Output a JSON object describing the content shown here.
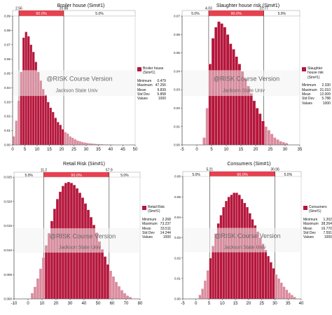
{
  "colors": {
    "bar_fill": "#b5163b",
    "bar_stroke": "#ffffff",
    "band_fill": "#e8404f",
    "tail_hatch": "#b5163b",
    "watermark_band": "#f2f2f2",
    "watermark_text": "#666666",
    "axis": "#333333"
  },
  "watermark": {
    "line1": "@RISK Course Version",
    "line2": "Jackson State Univ"
  },
  "chart_data": [
    {
      "type": "bar",
      "title": "Broiler house (Sim#1)",
      "percentile_band": {
        "lower": "2.56",
        "upper": "20.86",
        "left_pct": "",
        "middle_pct": "90.0%",
        "right_pct": "5.0%"
      },
      "band_values": [
        2.56,
        20.86
      ],
      "xlim": [
        0,
        50
      ],
      "ylim": [
        0,
        0.09
      ],
      "x_ticks": [
        "0",
        "5",
        "10",
        "15",
        "20",
        "25",
        "30",
        "35",
        "40",
        "45",
        "50"
      ],
      "y_ticks": [
        "0.00",
        "0.01",
        "0.02",
        "0.03",
        "0.04",
        "0.05",
        "0.06",
        "0.07",
        "0.08",
        "0.09"
      ],
      "bin_width": 1,
      "x": [
        0.5,
        1.5,
        2.5,
        3.5,
        4.5,
        5.5,
        6.5,
        7.5,
        8.5,
        9.5,
        10.5,
        11.5,
        12.5,
        13.5,
        14.5,
        15.5,
        16.5,
        17.5,
        18.5,
        19.5,
        20.5,
        21.5,
        22.5,
        23.5,
        24.5,
        25.5,
        26.5,
        27.5,
        28.5,
        29.5,
        30.5,
        31.5,
        32.5,
        33.5,
        34.5,
        35.5,
        36.5,
        37.5,
        38.5,
        39.5,
        40.5,
        41.5,
        42.5,
        43.5,
        44.5,
        45.5,
        46.5,
        47.5
      ],
      "values": [
        0.006,
        0.017,
        0.031,
        0.051,
        0.075,
        0.079,
        0.076,
        0.07,
        0.065,
        0.058,
        0.051,
        0.045,
        0.039,
        0.035,
        0.03,
        0.026,
        0.023,
        0.019,
        0.016,
        0.014,
        0.011,
        0.009,
        0.008,
        0.006,
        0.005,
        0.004,
        0.003,
        0.0025,
        0.002,
        0.0017,
        0.0014,
        0.0012,
        0.001,
        0.0008,
        0.0007,
        0.0006,
        0.0005,
        0.0004,
        0.0004,
        0.0003,
        0.0003,
        0.0002,
        0.0002,
        0.0002,
        0.0001,
        0.0001,
        0.0001,
        0.0001
      ],
      "legend": {
        "name": "Broiler house (Sim#1)",
        "stats": [
          {
            "label": "Minimum",
            "value": "0.479"
          },
          {
            "label": "Maximum",
            "value": "47.256"
          },
          {
            "label": "Mean",
            "value": "9.839"
          },
          {
            "label": "Std Dev",
            "value": "5.858"
          },
          {
            "label": "Values",
            "value": "1000"
          }
        ]
      }
    },
    {
      "type": "bar",
      "title": "Slaughter house risk (Sim#1)",
      "percentile_band": {
        "lower": "4.03",
        "upper": "22.77",
        "left_pct": "5.0%",
        "middle_pct": "90.0%",
        "right_pct": "5.0%"
      },
      "band_values": [
        4.03,
        22.77
      ],
      "xlim": [
        -5,
        35
      ],
      "ylim": [
        0,
        0.07
      ],
      "x_ticks": [
        "-5",
        "0",
        "5",
        "10",
        "15",
        "20",
        "25",
        "30",
        "35"
      ],
      "y_ticks": [
        "0.00",
        "0.01",
        "0.02",
        "0.03",
        "0.04",
        "0.05",
        "0.06",
        "0.07"
      ],
      "bin_width": 1,
      "x": [
        2.5,
        3.5,
        4.5,
        5.5,
        6.5,
        7.5,
        8.5,
        9.5,
        10.5,
        11.5,
        12.5,
        13.5,
        14.5,
        15.5,
        16.5,
        17.5,
        18.5,
        19.5,
        20.5,
        21.5,
        22.5,
        23.5,
        24.5,
        25.5,
        26.5,
        27.5,
        28.5,
        29.5,
        30.5
      ],
      "values": [
        0.004,
        0.02,
        0.044,
        0.058,
        0.064,
        0.067,
        0.066,
        0.064,
        0.06,
        0.055,
        0.052,
        0.048,
        0.044,
        0.04,
        0.036,
        0.032,
        0.028,
        0.024,
        0.02,
        0.017,
        0.013,
        0.01,
        0.008,
        0.006,
        0.004,
        0.003,
        0.002,
        0.0015,
        0.001
      ],
      "legend": {
        "name": "Slaughter house risk (Sim#1)",
        "stats": [
          {
            "label": "Minimum",
            "value": "2.330"
          },
          {
            "label": "Maximum",
            "value": "31.010"
          },
          {
            "label": "Mean",
            "value": "12.009"
          },
          {
            "label": "Std Dev",
            "value": "5.788"
          },
          {
            "label": "Values",
            "value": "1000"
          }
        ]
      }
    },
    {
      "type": "bar",
      "title": "Retail Risk (Sim#1)",
      "percentile_band": {
        "lower": "11.2",
        "upper": "57.9",
        "left_pct": "5.0%",
        "middle_pct": "90.0%",
        "right_pct": "5.0%"
      },
      "band_values": [
        11.2,
        57.9
      ],
      "xlim": [
        -10,
        80
      ],
      "ylim": [
        0,
        0.025
      ],
      "x_ticks": [
        "-10",
        "0",
        "10",
        "20",
        "30",
        "40",
        "50",
        "60",
        "70",
        "80"
      ],
      "y_ticks": [
        "0.000",
        "0.005",
        "0.010",
        "0.015",
        "0.020",
        "0.025"
      ],
      "bin_width": 2,
      "x": [
        3,
        5,
        7,
        9,
        11,
        13,
        15,
        17,
        19,
        21,
        23,
        25,
        27,
        29,
        31,
        33,
        35,
        37,
        39,
        41,
        43,
        45,
        47,
        49,
        51,
        53,
        55,
        57,
        59,
        61,
        63,
        65,
        67,
        69,
        71,
        73
      ],
      "values": [
        0.0012,
        0.0025,
        0.0042,
        0.0062,
        0.0085,
        0.011,
        0.0135,
        0.016,
        0.0185,
        0.0205,
        0.022,
        0.0232,
        0.0238,
        0.024,
        0.0238,
        0.0234,
        0.0227,
        0.0218,
        0.0208,
        0.0196,
        0.0183,
        0.0168,
        0.0152,
        0.0136,
        0.0118,
        0.0102,
        0.0087,
        0.0071,
        0.0058,
        0.0046,
        0.0035,
        0.0026,
        0.0018,
        0.0012,
        0.0007,
        0.0004
      ],
      "legend": {
        "name": "Retail Risk (Sim#1)",
        "stats": [
          {
            "label": "Minimum",
            "value": "2.268"
          },
          {
            "label": "Maximum",
            "value": "73.237"
          },
          {
            "label": "Mean",
            "value": "33.511"
          },
          {
            "label": "Std Dev",
            "value": "14.244"
          },
          {
            "label": "Values",
            "value": "1000"
          }
        ]
      }
    },
    {
      "type": "bar",
      "title": "Consumers (Sim#1)",
      "percentile_band": {
        "lower": "5.21",
        "upper": "30.06",
        "left_pct": "5.0%",
        "middle_pct": "90.0%",
        "right_pct": "5.0%"
      },
      "band_values": [
        5.21,
        30.06
      ],
      "xlim": [
        -5,
        40
      ],
      "ylim": [
        0,
        0.06
      ],
      "x_ticks": [
        "-5",
        "0",
        "5",
        "10",
        "15",
        "20",
        "25",
        "30",
        "35",
        "40"
      ],
      "y_ticks": [
        "0.00",
        "0.01",
        "0.02",
        "0.03",
        "0.04",
        "0.05",
        "0.06"
      ],
      "bin_width": 1,
      "x": [
        1.5,
        2.5,
        3.5,
        4.5,
        5.5,
        6.5,
        7.5,
        8.5,
        9.5,
        10.5,
        11.5,
        12.5,
        13.5,
        14.5,
        15.5,
        16.5,
        17.5,
        18.5,
        19.5,
        20.5,
        21.5,
        22.5,
        23.5,
        24.5,
        25.5,
        26.5,
        27.5,
        28.5,
        29.5,
        30.5,
        31.5,
        32.5,
        33.5,
        34.5,
        35.5,
        36.5,
        37.5
      ],
      "values": [
        0.002,
        0.005,
        0.009,
        0.014,
        0.02,
        0.026,
        0.032,
        0.037,
        0.041,
        0.045,
        0.048,
        0.05,
        0.051,
        0.052,
        0.052,
        0.051,
        0.049,
        0.047,
        0.045,
        0.042,
        0.039,
        0.036,
        0.033,
        0.03,
        0.027,
        0.024,
        0.021,
        0.018,
        0.015,
        0.012,
        0.01,
        0.008,
        0.006,
        0.0045,
        0.003,
        0.002,
        0.001
      ],
      "legend": {
        "name": "Consumers (Sim#1)",
        "stats": [
          {
            "label": "Minimum",
            "value": "1.202"
          },
          {
            "label": "Maximum",
            "value": "38.264"
          },
          {
            "label": "Mean",
            "value": "16.770"
          },
          {
            "label": "Std Dev",
            "value": "7.591"
          },
          {
            "label": "Values",
            "value": "1000"
          }
        ]
      }
    }
  ]
}
